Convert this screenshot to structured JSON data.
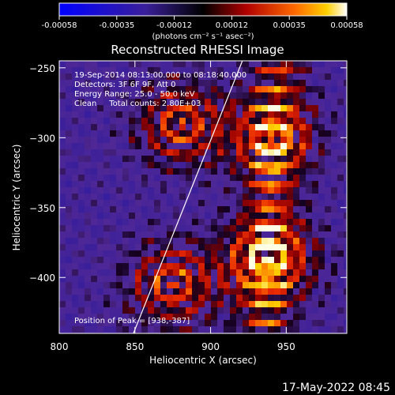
{
  "chart_data": {
    "type": "heatmap",
    "title": "Reconstructed RHESSI Image",
    "xlabel": "Heliocentric X (arcsec)",
    "ylabel": "Heliocentric Y (arcsec)",
    "xlim": [
      800,
      990
    ],
    "ylim": [
      -440,
      -245
    ],
    "xticks": [
      "800",
      "850",
      "900",
      "950"
    ],
    "yticks": [
      "-250",
      "-300",
      "-350",
      "-400"
    ],
    "colorbar": {
      "range": [
        -0.00058,
        0.00058
      ],
      "ticks": [
        "-0.00058",
        "-0.00035",
        "-0.00012",
        "0.00012",
        "0.00035",
        "0.00058"
      ],
      "label": "(photons cm⁻² s⁻¹ asec⁻²)"
    },
    "annotations": [
      "19-Sep-2014 08:13:00.000 to 08:18:40.000",
      "Detectors: 3F 6F 9F, Att 0",
      "Energy Range: 25.0 - 50.0 keV",
      "Clean     Total counts: 2.80E+03"
    ],
    "peak_label": "Position of Peak = [938,-387]",
    "peak": [
      938,
      -387
    ],
    "limb_line": [
      [
        849,
        -440
      ],
      [
        921,
        -245
      ]
    ],
    "sources": [
      {
        "x": 881,
        "y": -290
      },
      {
        "x": 938,
        "y": -387
      },
      {
        "x": 875,
        "y": -405
      },
      {
        "x": 940,
        "y": -300
      }
    ],
    "colors": {
      "background": "#000000",
      "text": "#ffffff"
    }
  },
  "footer": {
    "timestamp": "17-May-2022 08:45"
  }
}
